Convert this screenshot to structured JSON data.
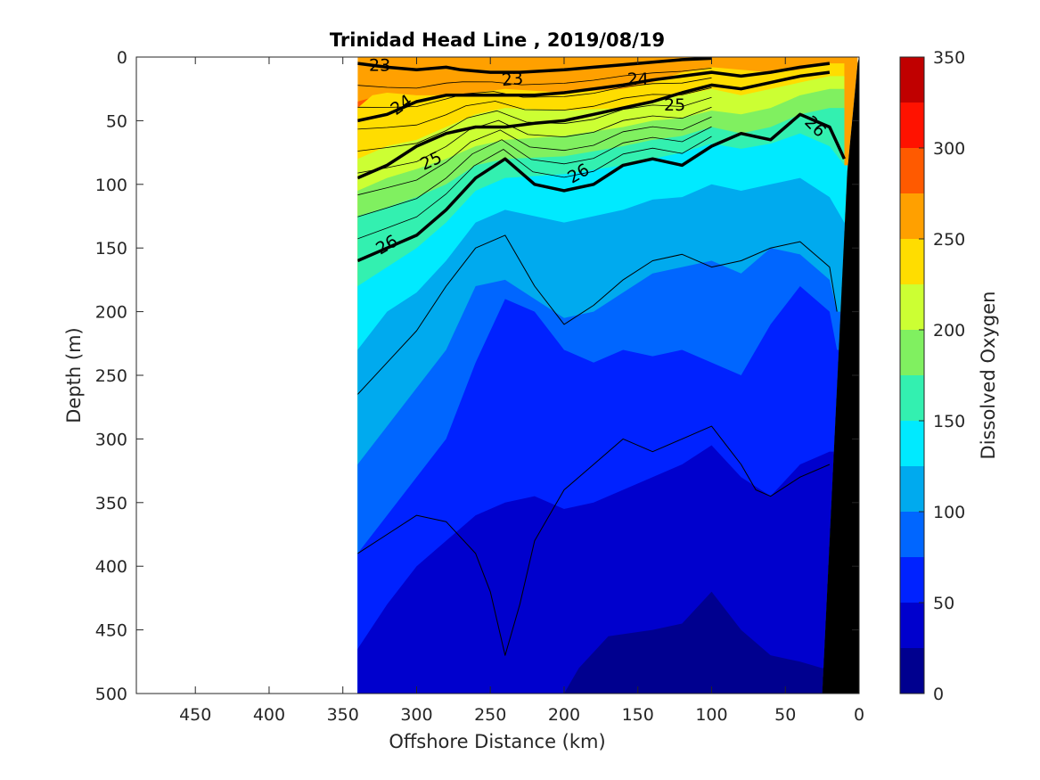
{
  "chart_data": {
    "type": "heatmap",
    "title": "Trinidad Head Line , 2019/08/19",
    "xlabel": "Offshore Distance (km)",
    "ylabel": "Depth (m)",
    "xlim": [
      490,
      0
    ],
    "ylim": [
      500,
      0
    ],
    "x_reversed": true,
    "y_reversed": true,
    "x_ticks": [
      "450",
      "400",
      "350",
      "300",
      "250",
      "200",
      "150",
      "100",
      "50",
      "0"
    ],
    "y_ticks": [
      "0",
      "50",
      "100",
      "150",
      "200",
      "250",
      "300",
      "350",
      "400",
      "450",
      "500"
    ],
    "data_extent_x": [
      340,
      0
    ],
    "colorbar": {
      "label": "Dissolved Oxygen",
      "range": [
        0,
        350
      ],
      "ticks": [
        "0",
        "50",
        "100",
        "150",
        "200",
        "250",
        "300",
        "350"
      ],
      "levels": [
        {
          "from": 0,
          "to": 25,
          "color": "#00008f"
        },
        {
          "from": 25,
          "to": 50,
          "color": "#0000cd"
        },
        {
          "from": 50,
          "to": 75,
          "color": "#0022ff"
        },
        {
          "from": 75,
          "to": 100,
          "color": "#0066ff"
        },
        {
          "from": 100,
          "to": 125,
          "color": "#00aaee"
        },
        {
          "from": 125,
          "to": 150,
          "color": "#00eaff"
        },
        {
          "from": 150,
          "to": 175,
          "color": "#33f0b0"
        },
        {
          "from": 175,
          "to": 200,
          "color": "#80f060"
        },
        {
          "from": 200,
          "to": 225,
          "color": "#ccff33"
        },
        {
          "from": 225,
          "to": 250,
          "color": "#ffdd00"
        },
        {
          "from": 250,
          "to": 275,
          "color": "#ffa000"
        },
        {
          "from": 275,
          "to": 300,
          "color": "#ff5a00"
        },
        {
          "from": 300,
          "to": 325,
          "color": "#ff1200"
        },
        {
          "from": 325,
          "to": 350,
          "color": "#c00000"
        }
      ]
    },
    "oxygen_boundaries": [
      {
        "level": 250,
        "points": [
          [
            340,
            40
          ],
          [
            330,
            30
          ],
          [
            320,
            28
          ],
          [
            300,
            30
          ],
          [
            280,
            30
          ],
          [
            260,
            28
          ],
          [
            240,
            25
          ],
          [
            200,
            28
          ],
          [
            160,
            25
          ],
          [
            140,
            20
          ],
          [
            120,
            12
          ],
          [
            100,
            8
          ],
          [
            80,
            10
          ],
          [
            60,
            12
          ],
          [
            40,
            10
          ],
          [
            20,
            5
          ]
        ]
      },
      {
        "level": 225,
        "points": [
          [
            340,
            80
          ],
          [
            320,
            70
          ],
          [
            300,
            65
          ],
          [
            280,
            55
          ],
          [
            260,
            45
          ],
          [
            240,
            40
          ],
          [
            200,
            42
          ],
          [
            160,
            40
          ],
          [
            140,
            35
          ],
          [
            120,
            30
          ],
          [
            100,
            25
          ],
          [
            80,
            30
          ],
          [
            60,
            25
          ],
          [
            40,
            20
          ],
          [
            20,
            15
          ]
        ]
      },
      {
        "level": 200,
        "points": [
          [
            340,
            105
          ],
          [
            320,
            95
          ],
          [
            300,
            88
          ],
          [
            280,
            80
          ],
          [
            260,
            70
          ],
          [
            240,
            65
          ],
          [
            200,
            62
          ],
          [
            160,
            55
          ],
          [
            140,
            50
          ],
          [
            120,
            48
          ],
          [
            100,
            42
          ],
          [
            80,
            45
          ],
          [
            60,
            40
          ],
          [
            40,
            30
          ],
          [
            20,
            25
          ]
        ]
      },
      {
        "level": 175,
        "points": [
          [
            340,
            125
          ],
          [
            320,
            118
          ],
          [
            300,
            110
          ],
          [
            280,
            100
          ],
          [
            260,
            85
          ],
          [
            240,
            80
          ],
          [
            200,
            78
          ],
          [
            160,
            70
          ],
          [
            140,
            65
          ],
          [
            120,
            62
          ],
          [
            100,
            55
          ],
          [
            80,
            60
          ],
          [
            60,
            55
          ],
          [
            40,
            45
          ],
          [
            20,
            40
          ]
        ]
      },
      {
        "level": 150,
        "points": [
          [
            340,
            180
          ],
          [
            320,
            165
          ],
          [
            300,
            150
          ],
          [
            280,
            130
          ],
          [
            260,
            105
          ],
          [
            240,
            95
          ],
          [
            200,
            92
          ],
          [
            160,
            85
          ],
          [
            140,
            80
          ],
          [
            120,
            75
          ],
          [
            100,
            68
          ],
          [
            80,
            72
          ],
          [
            60,
            68
          ],
          [
            40,
            60
          ],
          [
            20,
            70
          ],
          [
            10,
            85
          ]
        ]
      },
      {
        "level": 125,
        "points": [
          [
            340,
            230
          ],
          [
            320,
            200
          ],
          [
            300,
            185
          ],
          [
            280,
            160
          ],
          [
            260,
            130
          ],
          [
            240,
            120
          ],
          [
            200,
            130
          ],
          [
            160,
            120
          ],
          [
            140,
            112
          ],
          [
            120,
            110
          ],
          [
            100,
            100
          ],
          [
            80,
            105
          ],
          [
            60,
            100
          ],
          [
            40,
            95
          ],
          [
            20,
            110
          ],
          [
            10,
            130
          ]
        ]
      },
      {
        "level": 100,
        "points": [
          [
            340,
            320
          ],
          [
            320,
            290
          ],
          [
            300,
            260
          ],
          [
            280,
            230
          ],
          [
            260,
            180
          ],
          [
            240,
            175
          ],
          [
            220,
            190
          ],
          [
            200,
            205
          ],
          [
            180,
            200
          ],
          [
            160,
            185
          ],
          [
            140,
            170
          ],
          [
            120,
            165
          ],
          [
            100,
            160
          ],
          [
            80,
            170
          ],
          [
            60,
            150
          ],
          [
            40,
            155
          ],
          [
            20,
            175
          ],
          [
            15,
            200
          ]
        ]
      },
      {
        "level": 75,
        "points": [
          [
            340,
            390
          ],
          [
            320,
            360
          ],
          [
            300,
            330
          ],
          [
            280,
            300
          ],
          [
            260,
            240
          ],
          [
            240,
            190
          ],
          [
            220,
            200
          ],
          [
            200,
            230
          ],
          [
            180,
            240
          ],
          [
            160,
            230
          ],
          [
            140,
            235
          ],
          [
            120,
            230
          ],
          [
            100,
            240
          ],
          [
            80,
            250
          ],
          [
            60,
            210
          ],
          [
            40,
            180
          ],
          [
            20,
            200
          ],
          [
            15,
            230
          ]
        ]
      },
      {
        "level": 50,
        "points": [
          [
            340,
            465
          ],
          [
            320,
            430
          ],
          [
            300,
            400
          ],
          [
            280,
            380
          ],
          [
            260,
            360
          ],
          [
            240,
            350
          ],
          [
            220,
            345
          ],
          [
            200,
            355
          ],
          [
            180,
            350
          ],
          [
            160,
            340
          ],
          [
            140,
            330
          ],
          [
            120,
            320
          ],
          [
            100,
            305
          ],
          [
            80,
            330
          ],
          [
            60,
            345
          ],
          [
            40,
            320
          ],
          [
            20,
            310
          ]
        ]
      },
      {
        "level": 25,
        "points": [
          [
            200,
            500
          ],
          [
            190,
            480
          ],
          [
            170,
            455
          ],
          [
            140,
            450
          ],
          [
            120,
            445
          ],
          [
            100,
            420
          ],
          [
            80,
            450
          ],
          [
            60,
            470
          ],
          [
            40,
            475
          ],
          [
            25,
            480
          ]
        ]
      }
    ],
    "density_contours": [
      {
        "level": 23,
        "label": "23",
        "points": [
          [
            340,
            5
          ],
          [
            320,
            8
          ],
          [
            300,
            10
          ],
          [
            280,
            8
          ],
          [
            270,
            10
          ],
          [
            250,
            12
          ],
          [
            230,
            12
          ],
          [
            200,
            10
          ],
          [
            180,
            8
          ],
          [
            160,
            6
          ],
          [
            140,
            4
          ],
          [
            120,
            2
          ],
          [
            100,
            1
          ]
        ]
      },
      {
        "level": 24,
        "label": "24",
        "points": [
          [
            340,
            50
          ],
          [
            320,
            45
          ],
          [
            300,
            35
          ],
          [
            280,
            30
          ],
          [
            260,
            30
          ],
          [
            240,
            30
          ],
          [
            220,
            30
          ],
          [
            200,
            28
          ],
          [
            180,
            25
          ],
          [
            160,
            22
          ],
          [
            140,
            18
          ],
          [
            120,
            15
          ],
          [
            100,
            12
          ],
          [
            80,
            15
          ],
          [
            60,
            12
          ],
          [
            40,
            8
          ],
          [
            20,
            5
          ]
        ]
      },
      {
        "level": 25,
        "label": "25",
        "points": [
          [
            340,
            95
          ],
          [
            320,
            85
          ],
          [
            300,
            70
          ],
          [
            280,
            60
          ],
          [
            260,
            55
          ],
          [
            240,
            55
          ],
          [
            220,
            52
          ],
          [
            200,
            50
          ],
          [
            180,
            45
          ],
          [
            160,
            40
          ],
          [
            140,
            35
          ],
          [
            120,
            28
          ],
          [
            100,
            22
          ],
          [
            80,
            25
          ],
          [
            60,
            20
          ],
          [
            40,
            15
          ],
          [
            20,
            12
          ]
        ]
      },
      {
        "level": 26,
        "label": "26",
        "points": [
          [
            340,
            160
          ],
          [
            320,
            150
          ],
          [
            300,
            140
          ],
          [
            280,
            120
          ],
          [
            260,
            95
          ],
          [
            240,
            80
          ],
          [
            220,
            100
          ],
          [
            200,
            105
          ],
          [
            180,
            100
          ],
          [
            160,
            85
          ],
          [
            140,
            80
          ],
          [
            120,
            85
          ],
          [
            100,
            70
          ],
          [
            80,
            60
          ],
          [
            60,
            65
          ],
          [
            40,
            45
          ],
          [
            20,
            55
          ],
          [
            10,
            80
          ]
        ]
      },
      {
        "level": 26.5,
        "label": "",
        "points": [
          [
            340,
            265
          ],
          [
            320,
            240
          ],
          [
            300,
            215
          ],
          [
            280,
            180
          ],
          [
            260,
            150
          ],
          [
            240,
            140
          ],
          [
            220,
            180
          ],
          [
            200,
            210
          ],
          [
            180,
            195
          ],
          [
            160,
            175
          ],
          [
            140,
            160
          ],
          [
            120,
            155
          ],
          [
            100,
            165
          ],
          [
            80,
            160
          ],
          [
            60,
            150
          ],
          [
            40,
            145
          ],
          [
            20,
            165
          ],
          [
            15,
            200
          ]
        ]
      },
      {
        "level": 26.8,
        "label": "",
        "points": [
          [
            340,
            390
          ],
          [
            320,
            375
          ],
          [
            300,
            360
          ],
          [
            280,
            365
          ],
          [
            260,
            390
          ],
          [
            250,
            420
          ],
          [
            240,
            470
          ],
          [
            230,
            430
          ],
          [
            220,
            380
          ],
          [
            200,
            340
          ],
          [
            180,
            320
          ],
          [
            160,
            300
          ],
          [
            140,
            310
          ],
          [
            120,
            300
          ],
          [
            100,
            290
          ],
          [
            80,
            320
          ],
          [
            70,
            340
          ],
          [
            60,
            345
          ],
          [
            40,
            330
          ],
          [
            20,
            320
          ]
        ]
      }
    ]
  }
}
